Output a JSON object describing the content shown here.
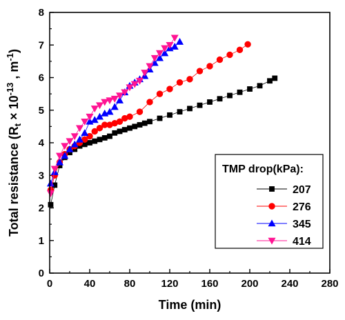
{
  "chart_data": {
    "type": "scatter",
    "xlabel": "Time (min)",
    "ylabel": {
      "prefix": "Total resistance (R",
      "sub": "t",
      "mid": " × 10",
      "sup1": "-13",
      "mid2": " , m",
      "sup2": "-1",
      "suffix": ")"
    },
    "xlim": [
      0,
      280
    ],
    "ylim": [
      0,
      8
    ],
    "xticks": [
      0,
      40,
      80,
      120,
      160,
      200,
      240,
      280
    ],
    "yticks": [
      0,
      1,
      2,
      3,
      4,
      5,
      6,
      7,
      8
    ],
    "xtick_labels": [
      "0",
      "40",
      "80",
      "120",
      "160",
      "200",
      "240",
      "280"
    ],
    "ytick_labels": [
      "0",
      "1",
      "2",
      "3",
      "4",
      "5",
      "6",
      "7",
      "8"
    ],
    "grid": false,
    "legend": {
      "title": "TMP drop(kPa):",
      "placement": "bottom-right"
    },
    "series": [
      {
        "name": "207",
        "marker": "square",
        "color": "#000000",
        "x": [
          1,
          5,
          10,
          15,
          20,
          25,
          30,
          35,
          40,
          45,
          50,
          55,
          60,
          65,
          70,
          75,
          80,
          85,
          90,
          95,
          100,
          110,
          120,
          130,
          140,
          150,
          160,
          170,
          180,
          190,
          200,
          210,
          220,
          225
        ],
        "y": [
          2.1,
          2.7,
          3.3,
          3.55,
          3.7,
          3.8,
          3.9,
          3.95,
          4.0,
          4.05,
          4.1,
          4.15,
          4.2,
          4.3,
          4.35,
          4.4,
          4.45,
          4.5,
          4.55,
          4.6,
          4.65,
          4.75,
          4.85,
          4.95,
          5.05,
          5.15,
          5.25,
          5.35,
          5.45,
          5.55,
          5.65,
          5.75,
          5.9,
          5.98
        ]
      },
      {
        "name": "276",
        "marker": "circle",
        "color": "#ff0000",
        "x": [
          1,
          5,
          10,
          15,
          20,
          25,
          30,
          35,
          40,
          45,
          50,
          55,
          60,
          65,
          70,
          75,
          80,
          90,
          100,
          110,
          120,
          130,
          140,
          150,
          160,
          170,
          180,
          190,
          198
        ],
        "y": [
          2.55,
          3.0,
          3.4,
          3.65,
          3.8,
          3.9,
          4.0,
          4.1,
          4.2,
          4.35,
          4.45,
          4.55,
          4.55,
          4.6,
          4.65,
          4.75,
          4.8,
          4.95,
          5.25,
          5.5,
          5.65,
          5.85,
          5.95,
          6.2,
          6.35,
          6.55,
          6.7,
          6.85,
          7.02
        ]
      },
      {
        "name": "345",
        "marker": "triangle-up",
        "color": "#0000ff",
        "x": [
          1,
          5,
          10,
          15,
          20,
          25,
          30,
          35,
          40,
          45,
          50,
          55,
          60,
          65,
          70,
          75,
          80,
          85,
          90,
          95,
          100,
          105,
          110,
          115,
          120,
          125,
          130
        ],
        "y": [
          2.75,
          3.1,
          3.4,
          3.6,
          3.8,
          3.95,
          4.1,
          4.3,
          4.65,
          4.7,
          4.8,
          4.9,
          4.95,
          5.1,
          5.3,
          5.55,
          5.75,
          5.85,
          5.95,
          6.05,
          6.25,
          6.45,
          6.6,
          6.75,
          6.9,
          6.95,
          7.1
        ]
      },
      {
        "name": "414",
        "marker": "triangle-down",
        "color": "#ff1493",
        "x": [
          1,
          5,
          10,
          15,
          20,
          25,
          30,
          35,
          40,
          45,
          50,
          55,
          60,
          65,
          70,
          75,
          80,
          85,
          90,
          95,
          100,
          105,
          110,
          115,
          120,
          125
        ],
        "y": [
          2.45,
          3.2,
          3.6,
          3.9,
          4.05,
          4.2,
          4.45,
          4.65,
          4.8,
          5.05,
          5.15,
          5.25,
          5.3,
          5.35,
          5.45,
          5.55,
          5.7,
          5.8,
          5.9,
          6.15,
          6.35,
          6.6,
          6.75,
          6.9,
          7.0,
          7.22
        ]
      }
    ]
  }
}
